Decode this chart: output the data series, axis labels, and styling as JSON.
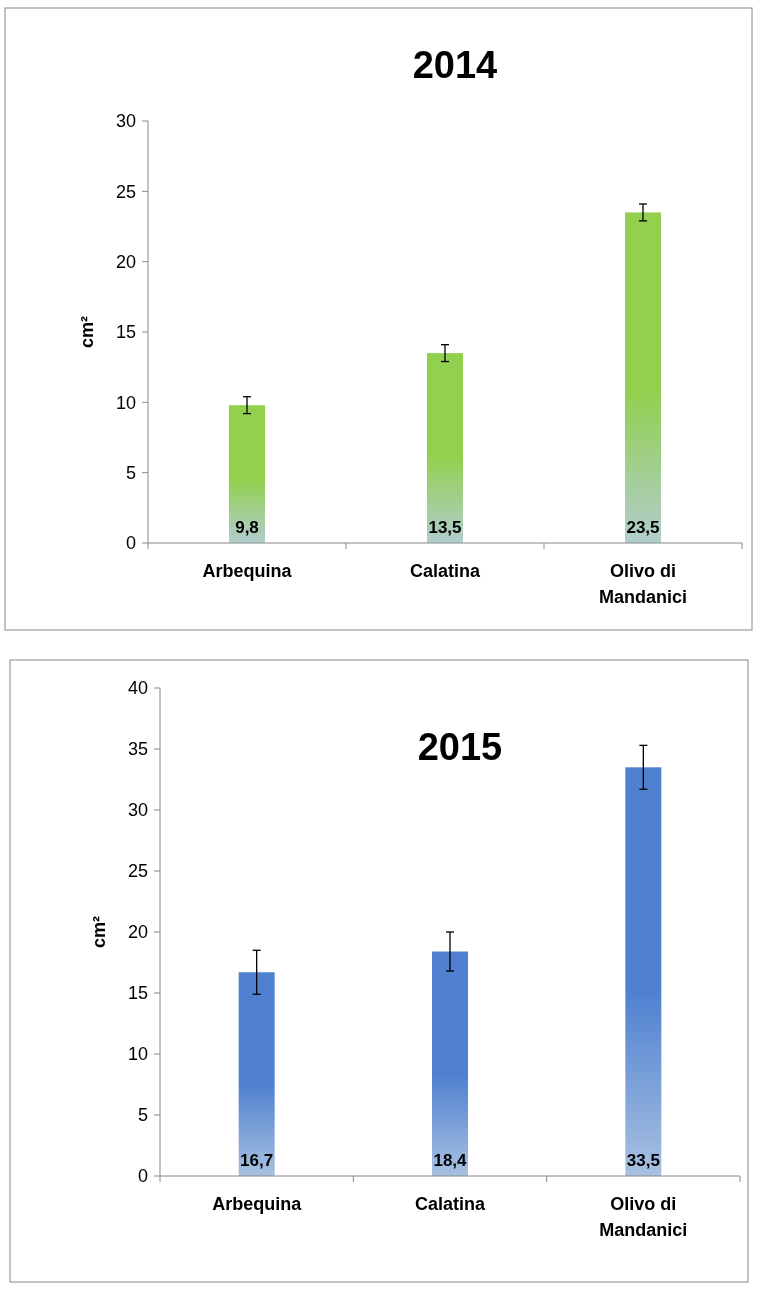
{
  "chart_data": [
    {
      "type": "bar",
      "title": "2014",
      "ylabel": "cm²",
      "categories": [
        "Arbequina",
        "Calatina",
        "Olivo di Mandanici"
      ],
      "values": [
        9.8,
        13.5,
        23.5
      ],
      "errors": [
        0.6,
        0.6,
        0.6
      ],
      "color": "#92d050",
      "ylim": [
        0,
        30
      ],
      "yticks": [
        0,
        5,
        10,
        15,
        20,
        25,
        30
      ],
      "data_labels": true,
      "value_labels": [
        "9,8",
        "13,5",
        "23,5"
      ],
      "grid": false
    },
    {
      "type": "bar",
      "title": "2015",
      "ylabel": "cm²",
      "categories": [
        "Arbequina",
        "Calatina",
        "Olivo di Mandanici"
      ],
      "values": [
        16.7,
        18.4,
        33.5
      ],
      "errors": [
        1.8,
        1.6,
        1.8
      ],
      "color": "#4f81d0",
      "ylim": [
        0,
        40
      ],
      "yticks": [
        0,
        5,
        10,
        15,
        20,
        25,
        30,
        35,
        40
      ],
      "data_labels": true,
      "value_labels": [
        "16,7",
        "18,4",
        "33,5"
      ],
      "grid": false
    }
  ]
}
